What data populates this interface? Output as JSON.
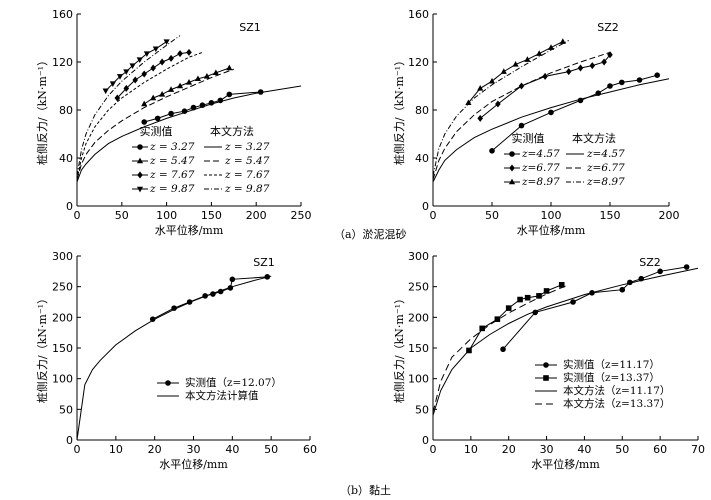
{
  "captions": {
    "a": "（a）淤泥混砂",
    "b": "（b）黏土"
  },
  "chart_data": [
    {
      "type": "line",
      "title": "SZ1",
      "xlabel": "水平位移/mm",
      "ylabel": "桩侧反力/（kN·m⁻¹）",
      "xlim": [
        0,
        250
      ],
      "ylim": [
        0,
        160
      ],
      "xticks": [
        0,
        50,
        100,
        150,
        200,
        250
      ],
      "yticks": [
        0,
        40,
        80,
        120,
        160
      ],
      "legend": {
        "measured_header": "实测值",
        "method_header": "本文方法"
      },
      "measured": [
        {
          "name": "z = 3.27",
          "marker": "circle",
          "points": [
            [
              75,
              70
            ],
            [
              90,
              73
            ],
            [
              105,
              77
            ],
            [
              120,
              79
            ],
            [
              130,
              82
            ],
            [
              140,
              84
            ],
            [
              150,
              86
            ],
            [
              160,
              88
            ],
            [
              170,
              93
            ],
            [
              205,
              95
            ]
          ]
        },
        {
          "name": "z = 5.47",
          "marker": "triangle-up",
          "points": [
            [
              75,
              85
            ],
            [
              85,
              90
            ],
            [
              95,
              93
            ],
            [
              105,
              97
            ],
            [
              115,
              100
            ],
            [
              125,
              103
            ],
            [
              135,
              106
            ],
            [
              145,
              108
            ],
            [
              155,
              111
            ],
            [
              170,
              115
            ]
          ]
        },
        {
          "name": "z = 7.67",
          "marker": "diamond",
          "points": [
            [
              45,
              90
            ],
            [
              55,
              98
            ],
            [
              65,
              105
            ],
            [
              75,
              110
            ],
            [
              85,
              115
            ],
            [
              95,
              120
            ],
            [
              105,
              123
            ],
            [
              115,
              127
            ],
            [
              125,
              128
            ]
          ]
        },
        {
          "name": "z = 9.87",
          "marker": "triangle-down",
          "points": [
            [
              32,
              96
            ],
            [
              40,
              102
            ],
            [
              48,
              108
            ],
            [
              55,
              112
            ],
            [
              62,
              117
            ],
            [
              70,
              122
            ],
            [
              78,
              127
            ],
            [
              88,
              131
            ],
            [
              100,
              137
            ]
          ]
        }
      ],
      "computed": [
        {
          "name": "z = 3.27",
          "dash": "solid",
          "points": [
            [
              0,
              20
            ],
            [
              5,
              30
            ],
            [
              10,
              35
            ],
            [
              20,
              43
            ],
            [
              35,
              52
            ],
            [
              50,
              58
            ],
            [
              75,
              66
            ],
            [
              100,
              73
            ],
            [
              125,
              79
            ],
            [
              150,
              85
            ],
            [
              175,
              90
            ],
            [
              200,
              94
            ],
            [
              225,
              97
            ],
            [
              250,
              100
            ]
          ]
        },
        {
          "name": "z = 5.47",
          "dash": "6,3",
          "points": [
            [
              0,
              22
            ],
            [
              5,
              35
            ],
            [
              10,
              43
            ],
            [
              20,
              53
            ],
            [
              35,
              63
            ],
            [
              50,
              71
            ],
            [
              75,
              82
            ],
            [
              100,
              91
            ],
            [
              125,
              99
            ],
            [
              150,
              107
            ],
            [
              175,
              114
            ]
          ]
        },
        {
          "name": "z = 7.67",
          "dash": "3,2",
          "points": [
            [
              0,
              22
            ],
            [
              5,
              40
            ],
            [
              10,
              52
            ],
            [
              20,
              66
            ],
            [
              35,
              80
            ],
            [
              50,
              90
            ],
            [
              75,
              103
            ],
            [
              100,
              114
            ],
            [
              125,
              124
            ],
            [
              140,
              128
            ]
          ]
        },
        {
          "name": "z = 9.87",
          "dash": "5,2,1,2",
          "points": [
            [
              0,
              25
            ],
            [
              5,
              47
            ],
            [
              10,
              60
            ],
            [
              20,
              76
            ],
            [
              35,
              92
            ],
            [
              50,
              104
            ],
            [
              75,
              120
            ],
            [
              100,
              134
            ],
            [
              115,
              142
            ]
          ]
        }
      ]
    },
    {
      "type": "line",
      "title": "SZ2",
      "xlabel": "水平位移/mm",
      "ylabel": "桩侧反力/（kN·m⁻¹）",
      "xlim": [
        0,
        200
      ],
      "ylim": [
        0,
        160
      ],
      "xticks": [
        0,
        50,
        100,
        150,
        200
      ],
      "yticks": [
        0,
        40,
        80,
        120,
        160
      ],
      "legend": {
        "measured_header": "实测值",
        "method_header": "本文方法"
      },
      "measured": [
        {
          "name": "z=4.57",
          "marker": "circle",
          "points": [
            [
              50,
              46
            ],
            [
              75,
              67
            ],
            [
              100,
              78
            ],
            [
              125,
              88
            ],
            [
              140,
              94
            ],
            [
              150,
              100
            ],
            [
              160,
              103
            ],
            [
              175,
              105
            ],
            [
              190,
              109
            ]
          ]
        },
        {
          "name": "z=6.77",
          "marker": "diamond",
          "points": [
            [
              40,
              73
            ],
            [
              55,
              85
            ],
            [
              75,
              100
            ],
            [
              95,
              108
            ],
            [
              115,
              112
            ],
            [
              125,
              115
            ],
            [
              135,
              117
            ],
            [
              145,
              120
            ],
            [
              150,
              126
            ]
          ]
        },
        {
          "name": "z=8.97",
          "marker": "triangle-up",
          "points": [
            [
              30,
              86
            ],
            [
              40,
              98
            ],
            [
              50,
              104
            ],
            [
              60,
              112
            ],
            [
              70,
              118
            ],
            [
              80,
              122
            ],
            [
              90,
              127
            ],
            [
              100,
              132
            ],
            [
              110,
              137
            ]
          ]
        }
      ],
      "computed": [
        {
          "name": "z=4.57",
          "dash": "solid",
          "points": [
            [
              0,
              20
            ],
            [
              5,
              30
            ],
            [
              10,
              38
            ],
            [
              20,
              47
            ],
            [
              35,
              57
            ],
            [
              50,
              64
            ],
            [
              75,
              74
            ],
            [
              100,
              82
            ],
            [
              125,
              89
            ],
            [
              150,
              95
            ],
            [
              175,
              101
            ],
            [
              200,
              106
            ]
          ]
        },
        {
          "name": "z=6.77",
          "dash": "6,3",
          "points": [
            [
              0,
              22
            ],
            [
              5,
              38
            ],
            [
              10,
              48
            ],
            [
              20,
              62
            ],
            [
              35,
              76
            ],
            [
              50,
              87
            ],
            [
              75,
              100
            ],
            [
              100,
              111
            ],
            [
              125,
              120
            ],
            [
              150,
              128
            ]
          ]
        },
        {
          "name": "z=8.97",
          "dash": "5,2,1,2",
          "points": [
            [
              0,
              25
            ],
            [
              5,
              48
            ],
            [
              10,
              60
            ],
            [
              20,
              75
            ],
            [
              35,
              90
            ],
            [
              50,
              101
            ],
            [
              75,
              116
            ],
            [
              100,
              130
            ],
            [
              115,
              138
            ]
          ]
        }
      ]
    },
    {
      "type": "line",
      "title": "SZ1",
      "xlabel": "水平位移/mm",
      "ylabel": "桩侧反力/（kN·m⁻¹）",
      "xlim": [
        0,
        60
      ],
      "ylim": [
        0,
        300
      ],
      "xticks": [
        0,
        10,
        20,
        30,
        40,
        50,
        60
      ],
      "yticks": [
        0,
        50,
        100,
        150,
        200,
        250,
        300
      ],
      "measured": [
        {
          "name": "实测值（z=12.07）",
          "marker": "circle",
          "points": [
            [
              19.5,
              197
            ],
            [
              25,
              215
            ],
            [
              29,
              225
            ],
            [
              33,
              235
            ],
            [
              35,
              238
            ],
            [
              37,
              242
            ],
            [
              39.5,
              248
            ],
            [
              40,
              262
            ],
            [
              49,
              266
            ]
          ]
        }
      ],
      "computed": [
        {
          "name": "本文方法计算值",
          "dash": "solid",
          "points": [
            [
              0,
              0
            ],
            [
              2,
              90
            ],
            [
              4,
              115
            ],
            [
              6,
              130
            ],
            [
              10,
              155
            ],
            [
              15,
              178
            ],
            [
              20,
              197
            ],
            [
              25,
              213
            ],
            [
              30,
              227
            ],
            [
              35,
              239
            ],
            [
              40,
              250
            ],
            [
              45,
              259
            ],
            [
              50,
              267
            ]
          ]
        }
      ]
    },
    {
      "type": "line",
      "title": "SZ2",
      "xlabel": "水平位移/mm",
      "ylabel": "桩侧反力/（kN·m⁻¹）",
      "xlim": [
        0,
        70
      ],
      "ylim": [
        0,
        300
      ],
      "xticks": [
        0,
        10,
        20,
        30,
        40,
        50,
        60,
        70
      ],
      "yticks": [
        0,
        50,
        100,
        150,
        200,
        250,
        300
      ],
      "measured": [
        {
          "name": "实测值（z=11.17）",
          "marker": "circle",
          "points": [
            [
              18.5,
              148
            ],
            [
              27,
              208
            ],
            [
              37,
              225
            ],
            [
              42,
              240
            ],
            [
              50,
              245
            ],
            [
              52,
              257
            ],
            [
              55,
              263
            ],
            [
              60,
              275
            ],
            [
              67,
              282
            ]
          ]
        },
        {
          "name": "实测值（z=13.37）",
          "marker": "square",
          "points": [
            [
              9.5,
              146
            ],
            [
              13,
              182
            ],
            [
              17,
              197
            ],
            [
              20,
              215
            ],
            [
              23,
              229
            ],
            [
              25,
              232
            ],
            [
              28,
              235
            ],
            [
              30,
              243
            ],
            [
              34,
              253
            ]
          ]
        }
      ],
      "computed": [
        {
          "name": "本文方法（z=11.17）",
          "dash": "solid",
          "points": [
            [
              0,
              40
            ],
            [
              2,
              80
            ],
            [
              5,
              115
            ],
            [
              10,
              150
            ],
            [
              15,
              172
            ],
            [
              20,
              190
            ],
            [
              25,
              205
            ],
            [
              30,
              217
            ],
            [
              40,
              237
            ],
            [
              50,
              253
            ],
            [
              60,
              267
            ],
            [
              70,
              280
            ]
          ]
        },
        {
          "name": "本文方法（z=13.37）",
          "dash": "7,4",
          "points": [
            [
              0,
              45
            ],
            [
              2,
              95
            ],
            [
              5,
              135
            ],
            [
              10,
              165
            ],
            [
              15,
              188
            ],
            [
              20,
              207
            ],
            [
              25,
              223
            ],
            [
              30,
              238
            ],
            [
              35,
              251
            ]
          ]
        }
      ]
    }
  ]
}
